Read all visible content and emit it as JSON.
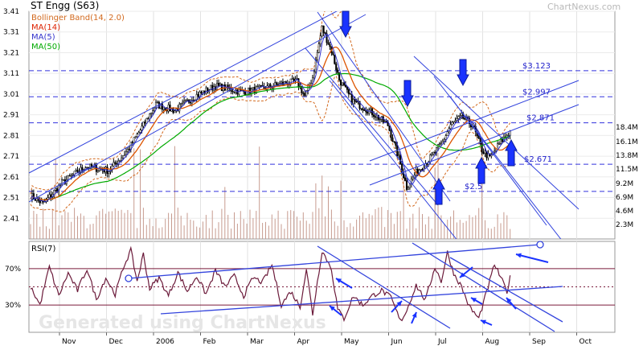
{
  "header": {
    "title": "ST Engg (S63)",
    "brand": "ChartNexus.com"
  },
  "legend": [
    {
      "label": "Bollinger Band(14, 2.0)",
      "color": "#d2691e"
    },
    {
      "label": "MA(14)",
      "color": "#dd2200"
    },
    {
      "label": "MA(5)",
      "color": "#3333cc"
    },
    {
      "label": "MA(50)",
      "color": "#00aa00"
    }
  ],
  "watermark": "Generated using ChartNexus",
  "chart_data": [
    {
      "type": "candlestick",
      "ylim": [
        2.31,
        3.41
      ],
      "price_ticks": [
        "3.41",
        "3.31",
        "3.21",
        "3.11",
        "3.01",
        "2.91",
        "2.81",
        "2.71",
        "2.61",
        "2.51",
        "2.41"
      ],
      "volume_ticks": [
        "18.4M",
        "16.1M",
        "13.8M",
        "11.5M",
        "9.2M",
        "6.9M",
        "4.6M",
        "2.3M"
      ],
      "x_ticks": [
        "Nov",
        "Dec",
        "2006",
        "Feb",
        "Mar",
        "Apr",
        "May",
        "Jun",
        "Jul",
        "Aug",
        "Sep",
        "Oct"
      ],
      "levels": [
        {
          "label": "$3.123",
          "value": 3.123
        },
        {
          "label": "$2.997",
          "value": 2.997
        },
        {
          "label": "$2.871",
          "value": 2.871
        },
        {
          "label": "$2.671",
          "value": 2.671
        },
        {
          "label": "$2.5",
          "value": 2.54
        }
      ],
      "anchors": [
        [
          0,
          2.52
        ],
        [
          8,
          2.48
        ],
        [
          20,
          2.58
        ],
        [
          35,
          2.66
        ],
        [
          50,
          2.64
        ],
        [
          62,
          2.74
        ],
        [
          72,
          2.86
        ],
        [
          80,
          2.96
        ],
        [
          92,
          2.93
        ],
        [
          105,
          3.0
        ],
        [
          118,
          3.05
        ],
        [
          135,
          3.02
        ],
        [
          150,
          3.04
        ],
        [
          160,
          3.06
        ],
        [
          170,
          3.07
        ],
        [
          175,
          3.0
        ],
        [
          180,
          3.09
        ],
        [
          186,
          3.33
        ],
        [
          192,
          3.22
        ],
        [
          197,
          3.08
        ],
        [
          205,
          2.98
        ],
        [
          218,
          2.92
        ],
        [
          228,
          2.86
        ],
        [
          235,
          2.7
        ],
        [
          240,
          2.56
        ],
        [
          246,
          2.63
        ],
        [
          255,
          2.7
        ],
        [
          263,
          2.78
        ],
        [
          268,
          2.86
        ],
        [
          275,
          2.9
        ],
        [
          282,
          2.86
        ],
        [
          288,
          2.74
        ],
        [
          293,
          2.7
        ],
        [
          300,
          2.78
        ],
        [
          306,
          2.83
        ]
      ]
    },
    {
      "type": "line",
      "name": "RSI(7)",
      "ylim": [
        0,
        100
      ],
      "ticks": [
        "70%",
        "30%"
      ],
      "anchors": [
        [
          0,
          50
        ],
        [
          6,
          30
        ],
        [
          12,
          72
        ],
        [
          18,
          40
        ],
        [
          24,
          65
        ],
        [
          30,
          46
        ],
        [
          36,
          70
        ],
        [
          42,
          36
        ],
        [
          48,
          60
        ],
        [
          54,
          42
        ],
        [
          60,
          75
        ],
        [
          64,
          90
        ],
        [
          68,
          56
        ],
        [
          72,
          86
        ],
        [
          76,
          48
        ],
        [
          82,
          60
        ],
        [
          88,
          40
        ],
        [
          94,
          66
        ],
        [
          100,
          45
        ],
        [
          106,
          62
        ],
        [
          112,
          42
        ],
        [
          118,
          68
        ],
        [
          124,
          50
        ],
        [
          130,
          62
        ],
        [
          136,
          40
        ],
        [
          142,
          60
        ],
        [
          148,
          55
        ],
        [
          154,
          74
        ],
        [
          160,
          30
        ],
        [
          166,
          45
        ],
        [
          172,
          28
        ],
        [
          176,
          70
        ],
        [
          180,
          20
        ],
        [
          186,
          90
        ],
        [
          192,
          70
        ],
        [
          196,
          25
        ],
        [
          200,
          15
        ],
        [
          206,
          40
        ],
        [
          212,
          30
        ],
        [
          218,
          40
        ],
        [
          224,
          46
        ],
        [
          230,
          38
        ],
        [
          236,
          12
        ],
        [
          240,
          24
        ],
        [
          246,
          52
        ],
        [
          252,
          35
        ],
        [
          258,
          72
        ],
        [
          262,
          56
        ],
        [
          266,
          88
        ],
        [
          270,
          65
        ],
        [
          275,
          50
        ],
        [
          280,
          28
        ],
        [
          286,
          15
        ],
        [
          292,
          50
        ],
        [
          296,
          75
        ],
        [
          300,
          60
        ],
        [
          304,
          45
        ],
        [
          306,
          60
        ]
      ]
    }
  ]
}
